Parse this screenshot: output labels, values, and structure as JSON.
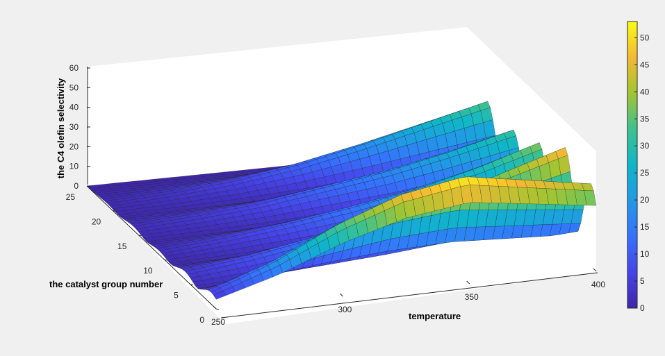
{
  "chart_data": {
    "type": "surface",
    "x_label": "temperature",
    "y_label": "the catalyst group number",
    "z_label": "the C4 olefin selectivity",
    "x_range": [
      250,
      400
    ],
    "y_range": [
      0,
      25
    ],
    "z_range": [
      0,
      60
    ],
    "x_ticks": [
      250,
      300,
      350,
      400
    ],
    "y_ticks": [
      0,
      5,
      10,
      15,
      20,
      25
    ],
    "z_ticks": [
      0,
      10,
      20,
      30,
      40,
      50,
      60
    ],
    "colorbar": {
      "range": [
        0,
        53
      ],
      "ticks": [
        0,
        5,
        10,
        15,
        20,
        25,
        30,
        35,
        40,
        45,
        50
      ],
      "colormap": "parula"
    },
    "grid": false,
    "temperatures": [
      250,
      275,
      300,
      325,
      350,
      375,
      400
    ],
    "ridge_peaks": [
      {
        "group": 1,
        "values": [
          6,
          18,
          34,
          46,
          52,
          47,
          42
        ]
      },
      {
        "group": 6,
        "values": [
          4,
          8,
          14,
          20,
          28,
          38,
          48
        ]
      },
      {
        "group": 11,
        "values": [
          2,
          5,
          9,
          14,
          20,
          28,
          38
        ]
      },
      {
        "group": 16,
        "values": [
          2,
          4,
          7,
          12,
          17,
          24,
          32
        ]
      },
      {
        "group": 21,
        "values": [
          1,
          3,
          6,
          11,
          18,
          26,
          34
        ]
      }
    ],
    "valley_level": 0
  }
}
